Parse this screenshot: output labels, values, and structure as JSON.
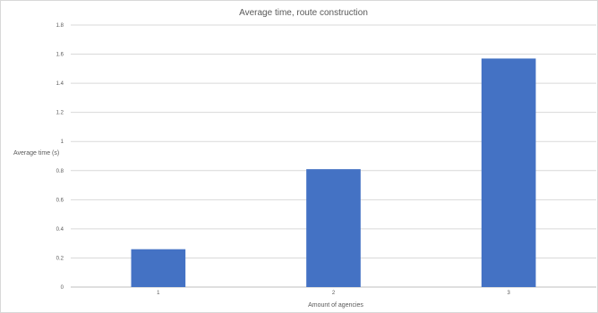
{
  "chart_data": {
    "type": "bar",
    "title": "Average time, route construction",
    "xlabel": "Amount of agencies",
    "ylabel": "Average time (s)",
    "categories": [
      "1",
      "2",
      "3"
    ],
    "values": [
      0.26,
      0.81,
      1.57
    ],
    "ylim": [
      0,
      1.8
    ],
    "yticks": [
      0,
      0.2,
      0.4,
      0.6,
      0.8,
      1,
      1.2,
      1.4,
      1.6,
      1.8
    ],
    "grid": true,
    "legend": "none",
    "bar_color": "#4472c4"
  }
}
